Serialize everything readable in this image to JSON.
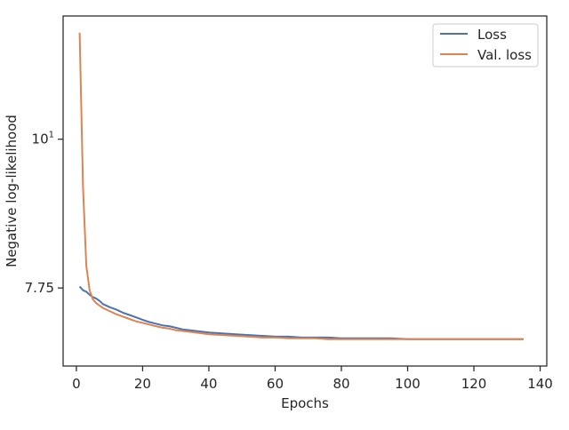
{
  "chart_data": {
    "type": "line",
    "xlabel": "Epochs",
    "ylabel": "Negative log-likelihood",
    "xlim": [
      -4,
      142
    ],
    "ylim": [
      6.78,
      12.35
    ],
    "yscale": "log",
    "grid": false,
    "legend_position": "top-right",
    "x_ticks": [
      0,
      20,
      40,
      60,
      80,
      100,
      120,
      140
    ],
    "x_tick_labels": [
      "0",
      "20",
      "40",
      "60",
      "80",
      "100",
      "120",
      "140"
    ],
    "y_ticks": [
      7.75,
      10
    ],
    "y_tick_labels": [
      "7.75",
      "10"
    ],
    "y_tick_label_super": [
      "",
      "1"
    ],
    "y_tick_label_base": [
      "7.75",
      "10"
    ],
    "series": [
      {
        "name": "Loss",
        "color": "#4c72b0",
        "points": [
          [
            1,
            7.77
          ],
          [
            2,
            7.72
          ],
          [
            3,
            7.7
          ],
          [
            4,
            7.66
          ],
          [
            5,
            7.63
          ],
          [
            6,
            7.61
          ],
          [
            7,
            7.58
          ],
          [
            8,
            7.54
          ],
          [
            10,
            7.5
          ],
          [
            12,
            7.47
          ],
          [
            14,
            7.43
          ],
          [
            16,
            7.4
          ],
          [
            18,
            7.37
          ],
          [
            20,
            7.34
          ],
          [
            22,
            7.31
          ],
          [
            24,
            7.29
          ],
          [
            26,
            7.27
          ],
          [
            28,
            7.26
          ],
          [
            30,
            7.24
          ],
          [
            32,
            7.22
          ],
          [
            34,
            7.21
          ],
          [
            36,
            7.2
          ],
          [
            38,
            7.19
          ],
          [
            40,
            7.18
          ],
          [
            44,
            7.17
          ],
          [
            48,
            7.16
          ],
          [
            52,
            7.15
          ],
          [
            56,
            7.14
          ],
          [
            60,
            7.13
          ],
          [
            64,
            7.13
          ],
          [
            68,
            7.12
          ],
          [
            72,
            7.12
          ],
          [
            76,
            7.12
          ],
          [
            80,
            7.11
          ],
          [
            85,
            7.11
          ],
          [
            90,
            7.11
          ],
          [
            95,
            7.11
          ],
          [
            100,
            7.1
          ],
          [
            105,
            7.1
          ],
          [
            110,
            7.1
          ],
          [
            115,
            7.1
          ],
          [
            120,
            7.1
          ],
          [
            125,
            7.1
          ],
          [
            130,
            7.1
          ],
          [
            135,
            7.1
          ]
        ]
      },
      {
        "name": "Val. loss",
        "color": "#dd8452",
        "points": [
          [
            1,
            12.0
          ],
          [
            2,
            9.2
          ],
          [
            3,
            8.05
          ],
          [
            4,
            7.72
          ],
          [
            5,
            7.6
          ],
          [
            6,
            7.55
          ],
          [
            7,
            7.52
          ],
          [
            8,
            7.49
          ],
          [
            10,
            7.45
          ],
          [
            12,
            7.41
          ],
          [
            14,
            7.38
          ],
          [
            16,
            7.35
          ],
          [
            18,
            7.32
          ],
          [
            20,
            7.3
          ],
          [
            22,
            7.28
          ],
          [
            24,
            7.26
          ],
          [
            26,
            7.24
          ],
          [
            28,
            7.23
          ],
          [
            30,
            7.21
          ],
          [
            32,
            7.2
          ],
          [
            34,
            7.19
          ],
          [
            36,
            7.18
          ],
          [
            38,
            7.17
          ],
          [
            40,
            7.16
          ],
          [
            44,
            7.15
          ],
          [
            48,
            7.14
          ],
          [
            52,
            7.13
          ],
          [
            56,
            7.12
          ],
          [
            60,
            7.12
          ],
          [
            64,
            7.11
          ],
          [
            68,
            7.11
          ],
          [
            72,
            7.11
          ],
          [
            76,
            7.1
          ],
          [
            80,
            7.1
          ],
          [
            85,
            7.1
          ],
          [
            90,
            7.1
          ],
          [
            95,
            7.1
          ],
          [
            100,
            7.1
          ],
          [
            105,
            7.1
          ],
          [
            110,
            7.1
          ],
          [
            115,
            7.1
          ],
          [
            120,
            7.1
          ],
          [
            125,
            7.1
          ],
          [
            130,
            7.1
          ],
          [
            135,
            7.1
          ]
        ]
      }
    ]
  }
}
